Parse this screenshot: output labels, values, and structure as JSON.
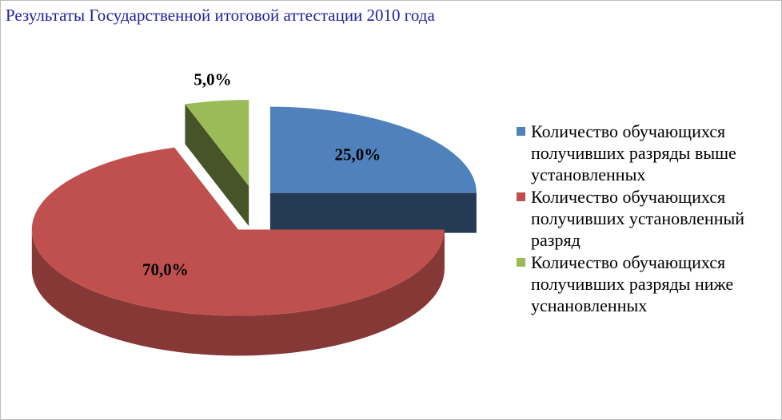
{
  "chart_data": {
    "type": "pie3d",
    "title": "Результаты Государственной итоговой аттестации 2010 года",
    "categories": [
      "Количество обучающихся получивших разряды выше установленных",
      "Количество обучающихся получивших установленный разряд",
      "Количество обучающихся получивших разряды ниже уснановленных"
    ],
    "values": [
      25,
      70,
      5
    ],
    "value_labels": [
      "25,0%",
      "70,0%",
      "5,0%"
    ],
    "colors": [
      "#4f81bd",
      "#c0504d",
      "#9bbb59"
    ],
    "legend": "right"
  }
}
